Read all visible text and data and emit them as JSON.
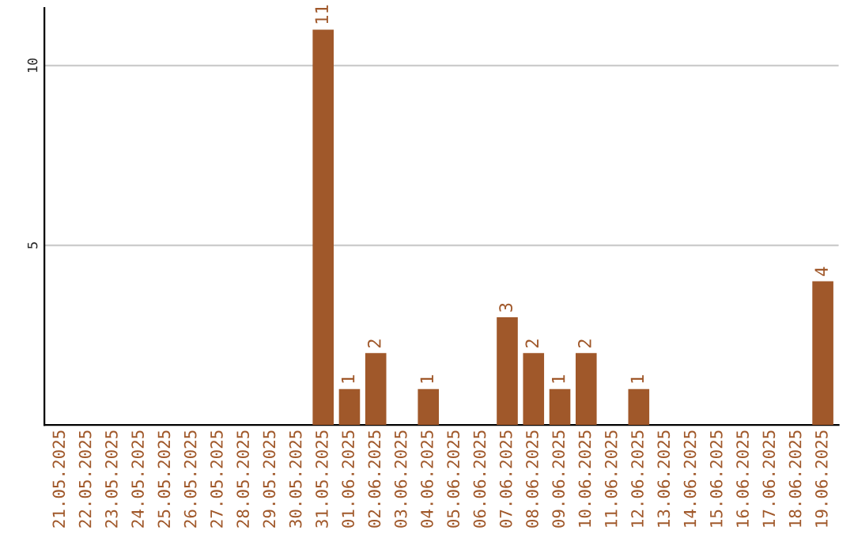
{
  "chart_data": {
    "type": "bar",
    "categories": [
      "21.05.2025",
      "22.05.2025",
      "23.05.2025",
      "24.05.2025",
      "25.05.2025",
      "26.05.2025",
      "27.05.2025",
      "28.05.2025",
      "29.05.2025",
      "30.05.2025",
      "31.05.2025",
      "01.06.2025",
      "02.06.2025",
      "03.06.2025",
      "04.06.2025",
      "05.06.2025",
      "06.06.2025",
      "07.06.2025",
      "08.06.2025",
      "09.06.2025",
      "10.06.2025",
      "11.06.2025",
      "12.06.2025",
      "13.06.2025",
      "14.06.2025",
      "15.06.2025",
      "16.06.2025",
      "17.06.2025",
      "18.06.2025",
      "19.06.2025"
    ],
    "values": [
      0,
      0,
      0,
      0,
      0,
      0,
      0,
      0,
      0,
      0,
      11,
      1,
      2,
      0,
      1,
      0,
      0,
      3,
      2,
      1,
      2,
      0,
      1,
      0,
      0,
      0,
      0,
      0,
      0,
      4
    ],
    "value_labels": [
      null,
      null,
      null,
      null,
      null,
      null,
      null,
      null,
      null,
      null,
      "11",
      "1",
      "2",
      null,
      "1",
      null,
      null,
      "3",
      "2",
      "1",
      "2",
      null,
      "1",
      null,
      null,
      null,
      null,
      null,
      null,
      "4"
    ],
    "color": "#a0582a",
    "ylim": [
      0,
      11.6
    ],
    "yticks": [
      5,
      10
    ],
    "grid": "y"
  }
}
